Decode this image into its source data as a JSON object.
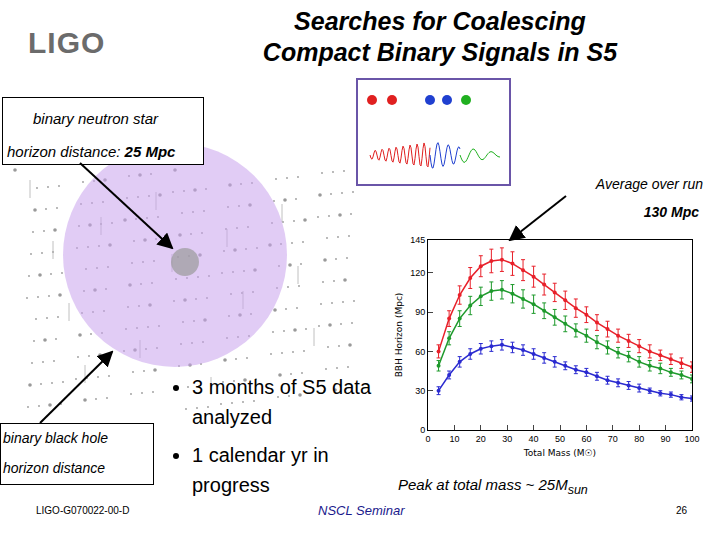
{
  "slide": {
    "logo": "LIGO",
    "title_lines": [
      "Searches for Coalescing",
      "Compact Binary Signals in S5"
    ],
    "bns": {
      "line1": "binary neutron star",
      "label": "horizon distance:",
      "value": "25 Mpc"
    },
    "average": {
      "label": "Average over run",
      "value": "130 Mpc"
    },
    "bullets": [
      "3 months of S5 data analyzed",
      "1 calendar yr in progress"
    ],
    "bbh": {
      "line1": "binary black hole",
      "line2": "horizon distance"
    },
    "peak": {
      "text": "Peak at total mass ~ 25M",
      "subscript": "sun"
    },
    "footer": {
      "id": "LIGO-G070022-00-D",
      "event": "NSCL Seminar",
      "page": "26"
    }
  },
  "chart_data": {
    "type": "line",
    "marker": "circle",
    "x_label": "Total Mass (M☉)",
    "y_label": "BBH Horizon (Mpc)",
    "x": [
      4,
      8,
      12,
      16,
      20,
      24,
      28,
      32,
      36,
      40,
      44,
      48,
      52,
      56,
      60,
      64,
      68,
      72,
      76,
      80,
      84,
      88,
      92,
      96,
      100
    ],
    "series": [
      {
        "color": "#e8202a",
        "values": [
          60,
          85,
          103,
          116,
          125,
          129,
          130,
          127,
          122,
          117,
          111,
          105,
          99,
          93,
          88,
          82,
          77,
          72,
          68,
          64,
          60,
          57,
          54,
          51,
          48
        ],
        "errors": [
          5,
          6,
          7,
          8,
          8,
          9,
          9,
          9,
          8,
          8,
          8,
          7,
          7,
          7,
          6,
          6,
          6,
          5,
          5,
          5,
          5,
          4,
          4,
          4,
          4
        ]
      },
      {
        "color": "#1e9a2c",
        "values": [
          49,
          70,
          85,
          95,
          102,
          106,
          107,
          104,
          100,
          96,
          91,
          86,
          81,
          76,
          72,
          67,
          63,
          59,
          56,
          52,
          49,
          47,
          44,
          42,
          39
        ],
        "errors": [
          4,
          5,
          6,
          7,
          7,
          7,
          7,
          7,
          7,
          7,
          6,
          6,
          6,
          5,
          5,
          5,
          5,
          4,
          4,
          4,
          4,
          4,
          3,
          3,
          3
        ]
      },
      {
        "color": "#2a2ad0",
        "values": [
          30,
          42,
          52,
          58,
          62,
          64,
          65,
          63,
          61,
          58,
          55,
          52,
          49,
          46,
          44,
          41,
          38,
          36,
          34,
          32,
          30,
          28,
          27,
          25,
          24
        ],
        "errors": [
          3,
          3,
          4,
          4,
          4,
          4,
          4,
          4,
          4,
          4,
          4,
          4,
          3,
          3,
          3,
          3,
          3,
          3,
          3,
          3,
          2,
          2,
          2,
          2,
          2
        ]
      }
    ],
    "xlim": [
      0,
      100
    ],
    "xticks": [
      0,
      10,
      20,
      30,
      40,
      50,
      60,
      70,
      80,
      90,
      100
    ],
    "ylim": [
      0,
      145
    ],
    "yticks": [
      0,
      30,
      60,
      90,
      120,
      145
    ],
    "grid": false
  }
}
